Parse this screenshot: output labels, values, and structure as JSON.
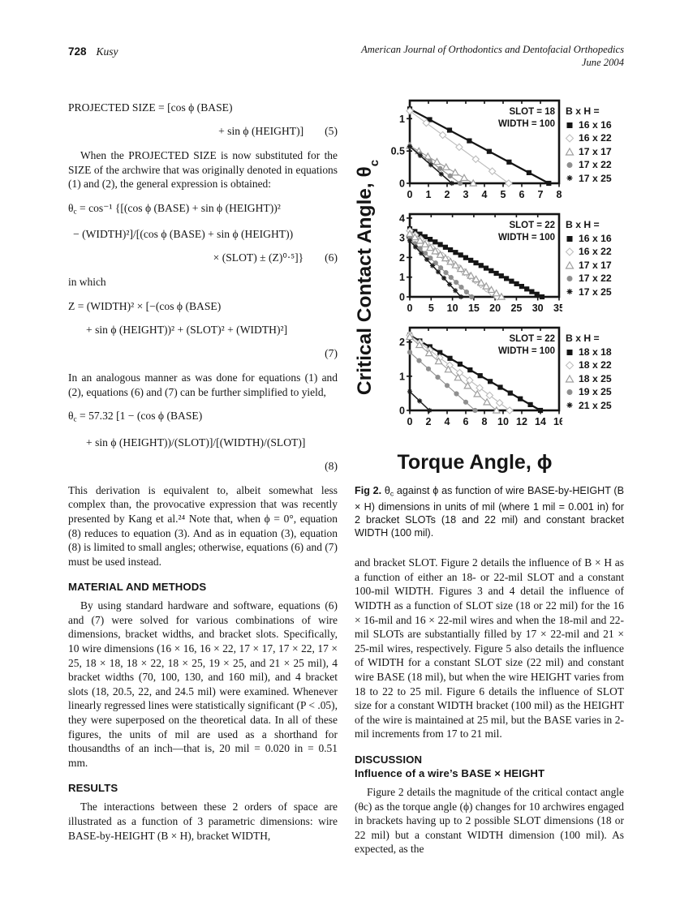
{
  "page": {
    "number": "728",
    "author": "Kusy",
    "journal": "American Journal of Orthodontics and Dentofacial Orthopedics",
    "issue": "June 2004"
  },
  "left": {
    "eq5": {
      "line1": "PROJECTED SIZE = [cos ϕ (BASE)",
      "line2": "+ sin ϕ (HEIGHT)]",
      "num": "(5)"
    },
    "p1": "When the PROJECTED SIZE is now substituted for the SIZE of the archwire that was originally denoted in equations (1) and (2), the general expression is obtained:",
    "eq6": {
      "sym": "θ",
      "sub": "c",
      "line1": " = cos⁻¹ {[(cos ϕ (BASE) + sin ϕ (HEIGHT))²",
      "line2": "− (WIDTH)²]/[(cos ϕ (BASE) + sin ϕ (HEIGHT))",
      "line3": "× (SLOT) ± (Z)⁰·⁵]}",
      "num": "(6)"
    },
    "inwhich": "in which",
    "eq7": {
      "line1": "Z = (WIDTH)² × [−(cos ϕ (BASE)",
      "line2": "+ sin ϕ (HEIGHT))² + (SLOT)² + (WIDTH)²]",
      "num": "(7)"
    },
    "p2": "In an analogous manner as was done for equations (1) and (2), equations (6) and (7) can be further simplified to yield,",
    "eq8": {
      "sym": "θ",
      "sub": "c",
      "line1": " = 57.32 [1 − (cos ϕ (BASE)",
      "line2": "+ sin ϕ (HEIGHT))/(SLOT)]/[(WIDTH)/(SLOT)]",
      "num": "(8)"
    },
    "p3": "This derivation is equivalent to, albeit somewhat less complex than, the provocative expression that was recently presented by Kang et al.²⁴ Note that, when ϕ = 0°, equation (8) reduces to equation (3). And as in equation (3), equation (8) is limited to small angles; otherwise, equations (6) and (7) must be used instead.",
    "h_methods": "MATERIAL AND METHODS",
    "p4": "By using standard hardware and software, equations (6) and (7) were solved for various combinations of wire dimensions, bracket widths, and bracket slots. Specifically, 10 wire dimensions (16 × 16, 16 × 22, 17 × 17, 17 × 22, 17 × 25, 18 × 18, 18 × 22, 18 × 25, 19 × 25, and 21 × 25 mil), 4 bracket widths (70, 100, 130, and 160 mil), and 4 bracket slots (18, 20.5, 22, and 24.5 mil) were examined. Whenever linearly regressed lines were statistically significant (P < .05), they were superposed on the theoretical data. In all of these figures, the units of mil are used as a shorthand for thousandths of an inch—that is, 20 mil = 0.020 in = 0.51 mm.",
    "h_results": "RESULTS",
    "p5": "The interactions between these 2 orders of space are illustrated as a function of 3 parametric dimensions: wire BASE-by-HEIGHT (B × H), bracket WIDTH,"
  },
  "right": {
    "caption": {
      "label": "Fig 2.",
      "sym": "θ",
      "sub": "c",
      "text": " against ϕ as function of wire BASE-by-HEIGHT (B × H) dimensions in units of mil (where 1 mil = 0.001 in) for 2 bracket SLOTs (18 and 22 mil) and constant bracket WIDTH (100 mil)."
    },
    "p1": "and bracket SLOT. Figure 2 details the influence of B × H as a function of either an 18- or 22-mil SLOT and a constant 100-mil WIDTH. Figures 3 and 4 detail the influence of WIDTH as a function of SLOT size (18 or 22 mil) for the 16 × 16-mil and 16 × 22-mil wires and when the 18-mil and 22-mil SLOTs are substantially filled by 17 × 22-mil and 21 × 25-mil wires, respectively. Figure 5 also details the influence of WIDTH for a constant SLOT size (22 mil) and constant wire BASE (18 mil), but when the wire HEIGHT varies from 18 to 22 to 25 mil. Figure 6 details the influence of SLOT size for a constant WIDTH bracket (100 mil) as the HEIGHT of the wire is maintained at 25 mil, but the BASE varies in 2-mil increments from 17 to 21 mil.",
    "h_discussion": "DISCUSSION",
    "h_sub": "Influence of a wire’s BASE × HEIGHT",
    "p2": "Figure 2 details the magnitude of the critical contact angle (θc) as the torque angle (ϕ) changes for 10 archwires engaged in brackets having up to 2 possible SLOT dimensions (18 or 22 mil) but a constant WIDTH dimension (100 mil). As expected, as the"
  },
  "figure": {
    "y_label": {
      "text": "Critical Contact Angle, θ",
      "sub": "c"
    },
    "x_label": {
      "text": "Torque Angle, ϕ"
    }
  },
  "chart_data": [
    {
      "type": "line",
      "annotations": [
        "SLOT = 18",
        "WIDTH = 100"
      ],
      "xlim": [
        0,
        8
      ],
      "xticks": [
        0,
        1,
        2,
        3,
        4,
        5,
        6,
        7,
        8
      ],
      "ylim": [
        0,
        1.28
      ],
      "yticks": [
        0,
        0.5,
        1
      ],
      "ytick_labels": [
        "0",
        "0.5",
        "1"
      ],
      "legend_title": "B x H =",
      "legend_position": "right",
      "grid": false,
      "series": [
        {
          "name": "16 x 16",
          "marker": "square",
          "color": "#151515",
          "y0": 1.15,
          "x_end": 7.45,
          "markers": 8
        },
        {
          "name": "16 x 22",
          "marker": "diamond",
          "color": "#bdbdbd",
          "y0": 1.12,
          "x_end": 5.3,
          "markers": 7
        },
        {
          "name": "17 x 17",
          "marker": "triangle",
          "color": "#9e9e9e",
          "y0": 0.58,
          "x_end": 3.4,
          "markers": 8
        },
        {
          "name": "17 x 22",
          "marker": "circle",
          "color": "#8f8f8f",
          "y0": 0.57,
          "x_end": 2.7,
          "markers": 6
        },
        {
          "name": "17 x 25",
          "marker": "star",
          "color": "#1a1a1a",
          "y0": 0.57,
          "x_end": 2.25,
          "markers": 5
        }
      ]
    },
    {
      "type": "line",
      "annotations": [
        "SLOT = 22",
        "WIDTH = 100"
      ],
      "xlim": [
        0,
        35
      ],
      "xticks": [
        0,
        5,
        10,
        15,
        20,
        25,
        30,
        35
      ],
      "ylim": [
        0,
        4.2
      ],
      "yticks": [
        0,
        1,
        2,
        3,
        4
      ],
      "ytick_labels": [
        "0",
        "1",
        "2",
        "3",
        "4"
      ],
      "legend_title": "B x H =",
      "legend_position": "right",
      "grid": false,
      "series": [
        {
          "name": "16 x 16",
          "marker": "square",
          "color": "#151515",
          "y0": 3.45,
          "x_end": 31,
          "markers": 27
        },
        {
          "name": "16 x 22",
          "marker": "diamond",
          "color": "#bdbdbd",
          "y0": 3.35,
          "x_end": 20.5,
          "markers": 17
        },
        {
          "name": "17 x 17",
          "marker": "triangle",
          "color": "#9e9e9e",
          "y0": 3.2,
          "x_end": 21.5,
          "markers": 19
        },
        {
          "name": "17 x 22",
          "marker": "circle",
          "color": "#8f8f8f",
          "y0": 2.95,
          "x_end": 14.5,
          "markers": 13
        },
        {
          "name": "17 x 25",
          "marker": "star",
          "color": "#1a1a1a",
          "y0": 2.85,
          "x_end": 12,
          "markers": 10
        }
      ]
    },
    {
      "type": "line",
      "annotations": [
        "SLOT = 22",
        "WIDTH = 100"
      ],
      "xlim": [
        0,
        16
      ],
      "xticks": [
        0,
        2,
        4,
        6,
        8,
        10,
        12,
        14,
        16
      ],
      "ylim": [
        0,
        2.42
      ],
      "yticks": [
        0,
        1,
        2
      ],
      "ytick_labels": [
        "0",
        "1",
        "2"
      ],
      "legend_title": "B x H =",
      "legend_position": "right",
      "grid": false,
      "series": [
        {
          "name": "18 x 18",
          "marker": "square",
          "color": "#151515",
          "y0": 2.2,
          "x_end": 14,
          "markers": 14
        },
        {
          "name": "18 x 22",
          "marker": "diamond",
          "color": "#bdbdbd",
          "y0": 2.2,
          "x_end": 10.7,
          "markers": 11
        },
        {
          "name": "18 x 25",
          "marker": "triangle",
          "color": "#9e9e9e",
          "y0": 2.15,
          "x_end": 9.3,
          "markers": 10
        },
        {
          "name": "19 x 25",
          "marker": "circle",
          "color": "#8f8f8f",
          "y0": 1.7,
          "x_end": 7,
          "markers": 8
        },
        {
          "name": "21 x 25",
          "marker": "star",
          "color": "#1a1a1a",
          "y0": 0.55,
          "x_end": 2.1,
          "markers": 3
        }
      ]
    }
  ]
}
